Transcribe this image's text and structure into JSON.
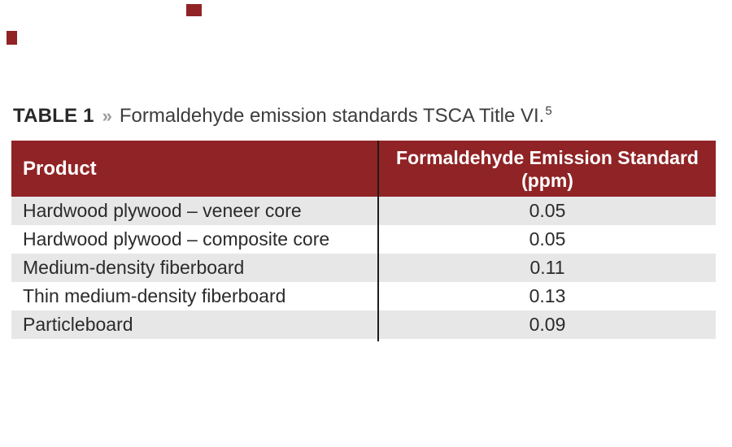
{
  "page": {
    "background": "#ffffff"
  },
  "decorations": {
    "top_square": "maroon-square",
    "left_square": "maroon-square",
    "color": "#902325"
  },
  "caption": {
    "label": "TABLE 1",
    "separator": "»",
    "title": "Formaldehyde emission standards TSCA Title VI.",
    "footnote_marker": "5"
  },
  "table": {
    "header": {
      "product": "Product",
      "standard_line1": "Formaldehyde Emission Standard",
      "standard_line2": "(ppm)"
    },
    "rows": [
      {
        "product": "Hardwood plywood – veneer core",
        "value": "0.05"
      },
      {
        "product": "Hardwood plywood – composite core",
        "value": "0.05"
      },
      {
        "product": "Medium-density fiberboard",
        "value": "0.11"
      },
      {
        "product": "Thin medium-density fiberboard",
        "value": "0.13"
      },
      {
        "product": "Particleboard",
        "value": "0.09"
      }
    ]
  },
  "colors": {
    "header_background": "#902325",
    "alt_row_background": "#e7e7e8",
    "body_text": "#2b2b2b",
    "header_text": "#ffffff",
    "caption_label": "#282828",
    "caption_separator": "#9c9c9c",
    "column_divider": "#1c1c1c"
  },
  "chart_data": {
    "type": "table",
    "title": "Formaldehyde emission standards TSCA Title VI.",
    "columns": [
      "Product",
      "Formaldehyde Emission Standard (ppm)"
    ],
    "categories": [
      "Hardwood plywood – veneer core",
      "Hardwood plywood – composite core",
      "Medium-density fiberboard",
      "Thin medium-density fiberboard",
      "Particleboard"
    ],
    "values": [
      0.05,
      0.05,
      0.11,
      0.13,
      0.09
    ]
  }
}
